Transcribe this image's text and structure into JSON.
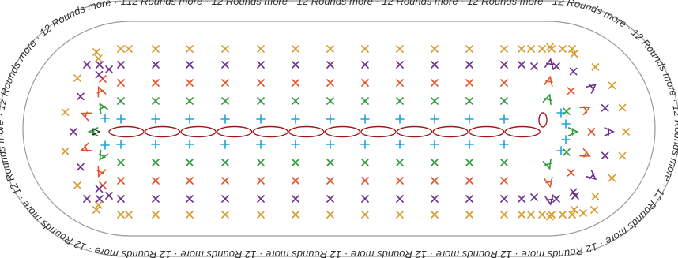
{
  "ring_text": {
    "repeat_label": "12 Rounds more",
    "separator": " · "
  },
  "foundation": {
    "chain_count": 12,
    "start_marker": "triangle-marker"
  },
  "rounds": [
    {
      "name": "round-1",
      "color": "#1fa3d9"
    },
    {
      "name": "round-2",
      "color": "#2f9a3a"
    },
    {
      "name": "round-3",
      "color": "#e2522a"
    },
    {
      "name": "round-4",
      "color": "#6b2c91"
    },
    {
      "name": "round-5",
      "color": "#d89a2a"
    }
  ],
  "colors": {
    "chain": "#9b1b1b",
    "outline": "#999999",
    "text": "#333333"
  }
}
